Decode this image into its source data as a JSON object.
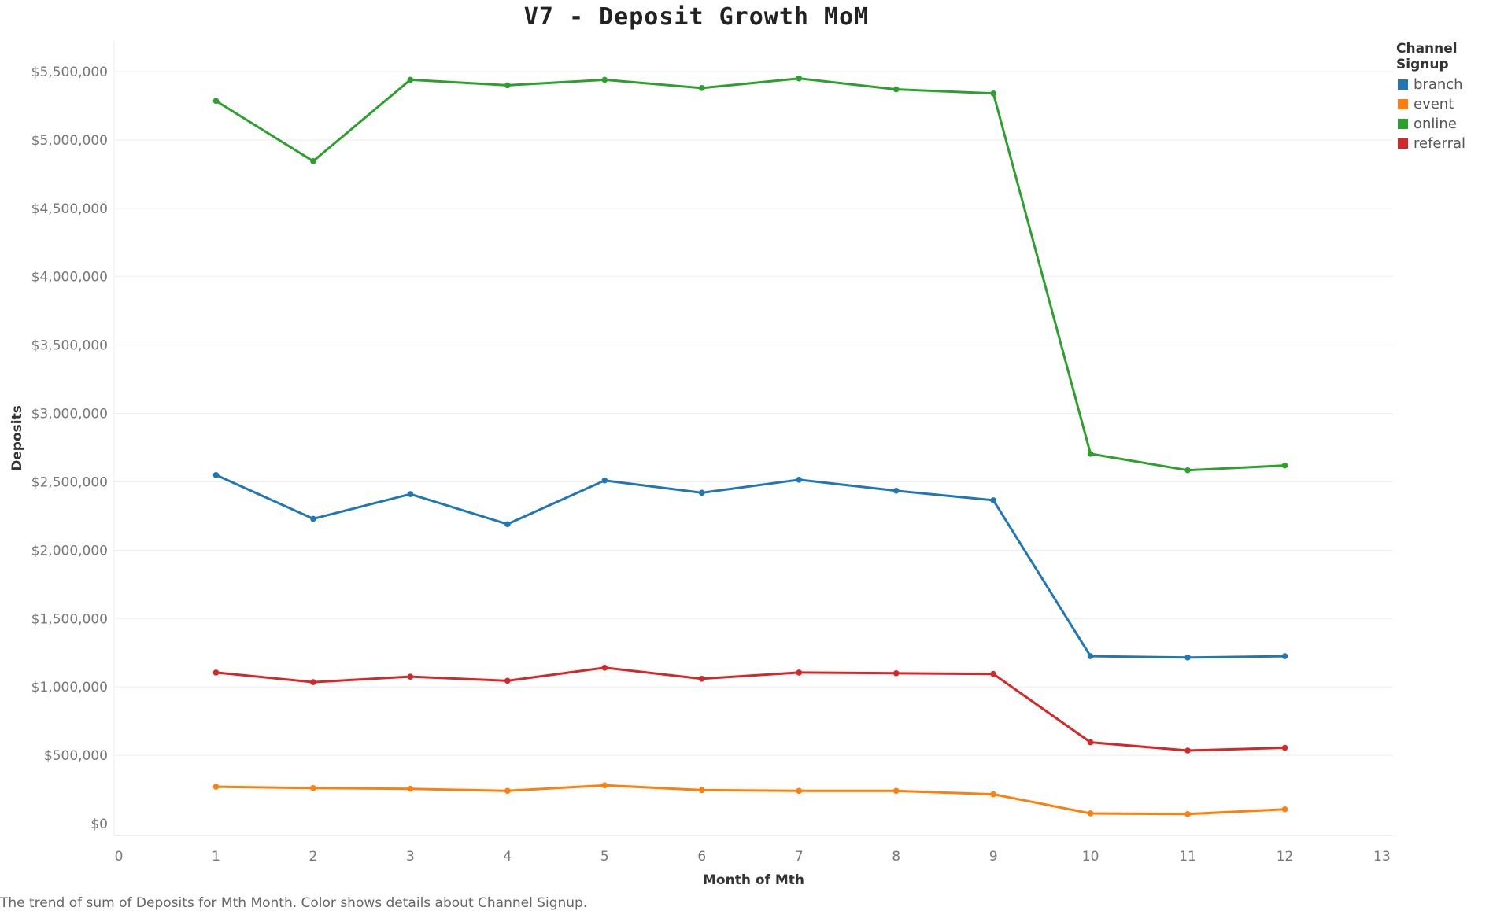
{
  "chart_data": {
    "type": "line",
    "title": "V7 - Deposit Growth MoM",
    "xlabel": "Month of Mth",
    "ylabel": "Deposits",
    "x": [
      1,
      2,
      3,
      4,
      5,
      6,
      7,
      8,
      9,
      10,
      11,
      12
    ],
    "xlim": [
      0,
      13
    ],
    "x_ticks": [
      "0",
      "1",
      "2",
      "3",
      "4",
      "5",
      "6",
      "7",
      "8",
      "9",
      "10",
      "11",
      "12",
      "13"
    ],
    "ylim": [
      0,
      5500000
    ],
    "y_ticks": [
      "$0",
      "$500,000",
      "$1,000,000",
      "$1,500,000",
      "$2,000,000",
      "$2,500,000",
      "$3,000,000",
      "$3,500,000",
      "$4,000,000",
      "$4,500,000",
      "$5,000,000",
      "$5,500,000"
    ],
    "grid": true,
    "legend_title": "Channel Signup",
    "legend_position": "top-right",
    "series": [
      {
        "name": "branch",
        "color": "#1f77b4",
        "values": [
          2550000,
          2230000,
          2410000,
          2190000,
          2510000,
          2420000,
          2515000,
          2435000,
          2365000,
          1225000,
          1215000,
          1225000
        ]
      },
      {
        "name": "event",
        "color": "#ff7f0e",
        "values": [
          270000,
          260000,
          255000,
          240000,
          280000,
          245000,
          240000,
          240000,
          215000,
          75000,
          70000,
          105000
        ]
      },
      {
        "name": "online",
        "color": "#2ca02c",
        "values": [
          5285000,
          4845000,
          5440000,
          5400000,
          5440000,
          5380000,
          5450000,
          5370000,
          5340000,
          2705000,
          2585000,
          2620000
        ]
      },
      {
        "name": "referral",
        "color": "#d62728",
        "values": [
          1105000,
          1035000,
          1075000,
          1045000,
          1140000,
          1060000,
          1105000,
          1100000,
          1095000,
          595000,
          535000,
          555000
        ]
      }
    ],
    "caption": "The trend of sum of Deposits for Mth Month.  Color shows details about Channel Signup."
  }
}
